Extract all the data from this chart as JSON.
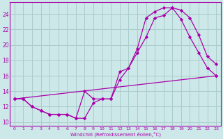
{
  "bg_color": "#cce8e8",
  "grid_color": "#aacccc",
  "line_color": "#aa00aa",
  "marker": "D",
  "markersize": 2.2,
  "linewidth": 0.9,
  "xlabel": "Windchill (Refroidissement éolien,°C)",
  "xlim": [
    -0.5,
    23.5
  ],
  "ylim": [
    9.5,
    25.5
  ],
  "xticks": [
    0,
    1,
    2,
    3,
    4,
    5,
    6,
    7,
    8,
    9,
    10,
    11,
    12,
    13,
    14,
    15,
    16,
    17,
    18,
    19,
    20,
    21,
    22,
    23
  ],
  "yticks": [
    10,
    12,
    14,
    16,
    18,
    20,
    22,
    24
  ],
  "line1_x": [
    0,
    1,
    2,
    3,
    4,
    5,
    6,
    7,
    8,
    9,
    10,
    11,
    12,
    13,
    14,
    15,
    16,
    17,
    18,
    19,
    20,
    21,
    22,
    23
  ],
  "line1_y": [
    13.0,
    13.0,
    12.0,
    11.5,
    11.0,
    11.0,
    11.0,
    10.5,
    14.0,
    13.0,
    13.0,
    13.0,
    15.5,
    17.0,
    19.5,
    23.5,
    24.3,
    24.8,
    24.8,
    23.3,
    21.0,
    19.0,
    17.0,
    16.0
  ],
  "line2_x": [
    0,
    1,
    2,
    3,
    4,
    5,
    6,
    7,
    8,
    9,
    10,
    11,
    12,
    13,
    14,
    15,
    16,
    17,
    18,
    19,
    20,
    21,
    22,
    23
  ],
  "line2_y": [
    13.0,
    13.0,
    12.0,
    11.5,
    11.0,
    11.0,
    11.0,
    10.5,
    10.5,
    12.5,
    13.0,
    13.0,
    16.5,
    17.0,
    19.0,
    21.0,
    23.5,
    23.8,
    24.8,
    24.5,
    23.5,
    21.3,
    18.5,
    17.5
  ],
  "line3_x": [
    0,
    23
  ],
  "line3_y": [
    13.0,
    16.0
  ]
}
